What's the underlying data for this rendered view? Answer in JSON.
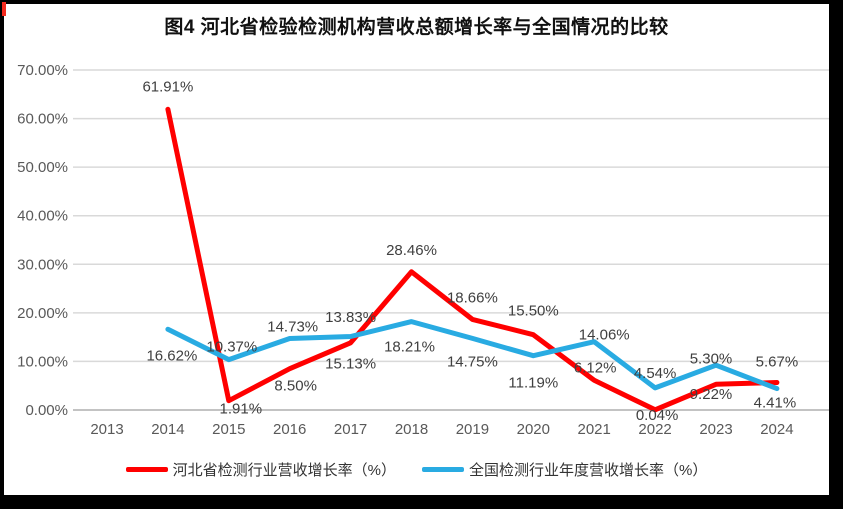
{
  "window": {
    "title": "图4 河北省检验检测机构营收总额增长率与全国情况的比较"
  },
  "chart_data": {
    "type": "line",
    "title": "图4 河北省检验检测机构营收总额增长率与全国情况的比较",
    "categories": [
      "2013",
      "2014",
      "2015",
      "2016",
      "2017",
      "2018",
      "2019",
      "2020",
      "2021",
      "2022",
      "2023",
      "2024"
    ],
    "series": [
      {
        "name": "河北省检测行业营收增长率（%）",
        "color": "#ff0000",
        "values": [
          null,
          61.91,
          1.91,
          8.5,
          13.83,
          28.46,
          18.66,
          15.5,
          6.12,
          0.04,
          5.3,
          5.67
        ],
        "label_offsets": [
          [
            0,
            0
          ],
          [
            0,
            -18
          ],
          [
            12,
            13
          ],
          [
            6,
            22
          ],
          [
            0,
            -21
          ],
          [
            0,
            -17
          ],
          [
            0,
            -17
          ],
          [
            0,
            -19
          ],
          [
            1,
            -8
          ],
          [
            2,
            10
          ],
          [
            -5,
            -21
          ],
          [
            0,
            -16
          ]
        ]
      },
      {
        "name": "全国检测行业年度营收增长率（%）",
        "color": "#29abe2",
        "values": [
          null,
          16.62,
          10.37,
          14.73,
          15.13,
          18.21,
          14.75,
          11.19,
          14.06,
          4.54,
          9.22,
          4.41
        ],
        "label_offsets": [
          [
            0,
            0
          ],
          [
            4,
            31
          ],
          [
            3,
            -8
          ],
          [
            3,
            -7
          ],
          [
            0,
            32
          ],
          [
            -2,
            30
          ],
          [
            0,
            28
          ],
          [
            0,
            32
          ],
          [
            10,
            -2
          ],
          [
            0,
            -10
          ],
          [
            -5,
            34
          ],
          [
            -2,
            19
          ]
        ]
      }
    ],
    "ylabel": "",
    "xlabel": "",
    "y_axis": {
      "min": 0,
      "max": 70,
      "step": 10,
      "tick_labels": [
        "0.00%",
        "10.00%",
        "20.00%",
        "30.00%",
        "40.00%",
        "50.00%",
        "60.00%",
        "70.00%"
      ]
    },
    "label_format": "0.00%",
    "grid": true,
    "legend_position": "bottom",
    "colors": {
      "gridline": "#d9d9d9",
      "axis_line": "#c3c3c3",
      "axis_text": "#595959",
      "data_label_text": "#404040",
      "accent_mark": "#f42a1e"
    }
  }
}
